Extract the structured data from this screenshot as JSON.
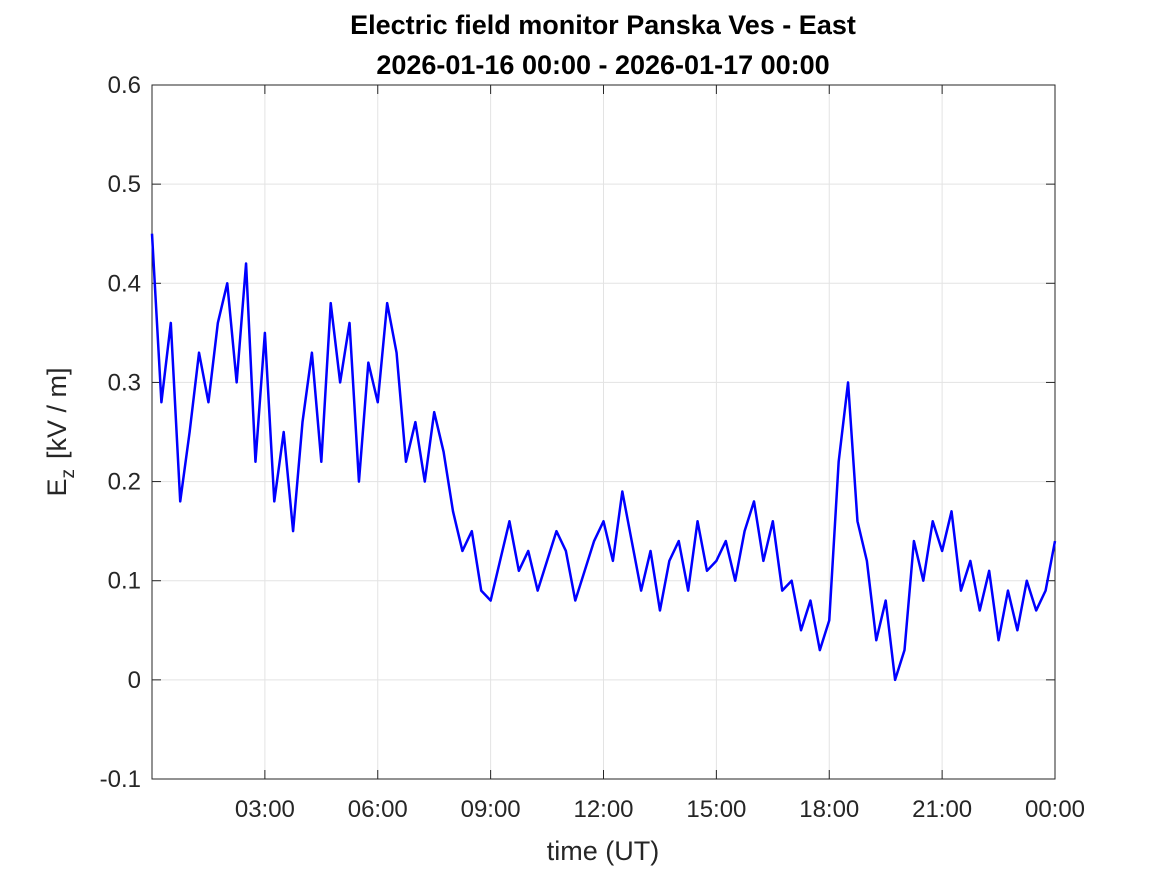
{
  "chart_data": {
    "type": "line",
    "title": [
      "Electric field monitor Panska Ves - East",
      "2026-01-16 00:00 - 2026-01-17 00:00"
    ],
    "xlabel": "time (UT)",
    "ylabel": {
      "symbol": "E",
      "subscript": "z",
      "unit": "[kV / m]"
    },
    "xlim": [
      0,
      24
    ],
    "xticks": [
      {
        "value": 3,
        "label": "03:00"
      },
      {
        "value": 6,
        "label": "06:00"
      },
      {
        "value": 9,
        "label": "09:00"
      },
      {
        "value": 12,
        "label": "12:00"
      },
      {
        "value": 15,
        "label": "15:00"
      },
      {
        "value": 18,
        "label": "18:00"
      },
      {
        "value": 21,
        "label": "21:00"
      },
      {
        "value": 24,
        "label": "00:00"
      }
    ],
    "ylim": [
      -0.1,
      0.6
    ],
    "yticks": [
      -0.1,
      0,
      0.1,
      0.2,
      0.3,
      0.4,
      0.5,
      0.6
    ],
    "grid": true,
    "x": [
      0,
      0.25,
      0.5,
      0.75,
      1,
      1.25,
      1.5,
      1.75,
      2,
      2.25,
      2.5,
      2.75,
      3,
      3.25,
      3.5,
      3.75,
      4,
      4.25,
      4.5,
      4.75,
      5,
      5.25,
      5.5,
      5.75,
      6,
      6.25,
      6.5,
      6.75,
      7,
      7.25,
      7.5,
      7.75,
      8,
      8.25,
      8.5,
      8.75,
      9,
      9.25,
      9.5,
      9.75,
      10,
      10.25,
      10.5,
      10.75,
      11,
      11.25,
      11.5,
      11.75,
      12,
      12.25,
      12.5,
      12.75,
      13,
      13.25,
      13.5,
      13.75,
      14,
      14.25,
      14.5,
      14.75,
      15,
      15.25,
      15.5,
      15.75,
      16,
      16.25,
      16.5,
      16.75,
      17,
      17.25,
      17.5,
      17.75,
      18,
      18.25,
      18.5,
      18.75,
      19,
      19.25,
      19.5,
      19.75,
      20,
      20.25,
      20.5,
      20.75,
      21,
      21.25,
      21.5,
      21.75,
      22,
      22.25,
      22.5,
      22.75,
      23,
      23.25,
      23.5,
      23.75,
      24
    ],
    "series": [
      {
        "color": "#0000ff",
        "values": [
          0.45,
          0.28,
          0.36,
          0.18,
          0.25,
          0.33,
          0.28,
          0.36,
          0.4,
          0.3,
          0.42,
          0.22,
          0.35,
          0.18,
          0.25,
          0.15,
          0.26,
          0.33,
          0.22,
          0.38,
          0.3,
          0.36,
          0.2,
          0.32,
          0.28,
          0.38,
          0.33,
          0.22,
          0.26,
          0.2,
          0.27,
          0.23,
          0.17,
          0.13,
          0.15,
          0.09,
          0.08,
          0.12,
          0.16,
          0.11,
          0.13,
          0.09,
          0.12,
          0.15,
          0.13,
          0.08,
          0.11,
          0.14,
          0.16,
          0.12,
          0.19,
          0.14,
          0.09,
          0.13,
          0.07,
          0.12,
          0.14,
          0.09,
          0.16,
          0.11,
          0.12,
          0.14,
          0.1,
          0.15,
          0.18,
          0.12,
          0.16,
          0.09,
          0.1,
          0.05,
          0.08,
          0.03,
          0.06,
          0.22,
          0.3,
          0.16,
          0.12,
          0.04,
          0.08,
          0.0,
          0.03,
          0.14,
          0.1,
          0.16,
          0.13,
          0.17,
          0.09,
          0.12,
          0.07,
          0.11,
          0.04,
          0.09,
          0.05,
          0.1,
          0.07,
          0.09,
          0.14
        ]
      }
    ]
  }
}
